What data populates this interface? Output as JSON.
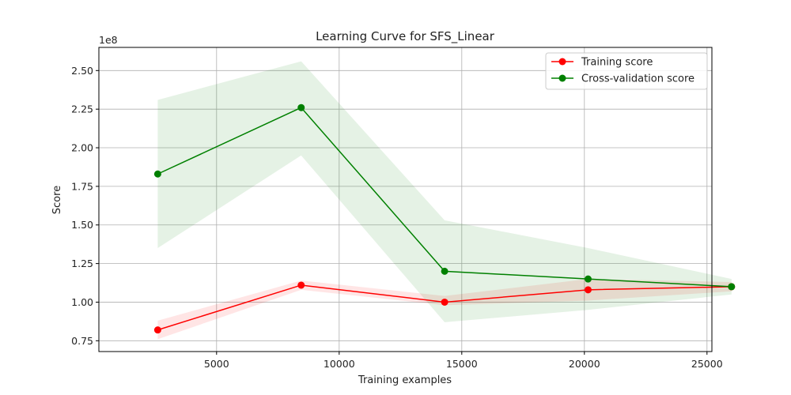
{
  "chart_data": {
    "type": "line",
    "title": "Learning Curve for SFS_Linear",
    "xlabel": "Training examples",
    "ylabel": "Score",
    "y_scale_label": "1e8",
    "xlim": [
      200,
      25200
    ],
    "ylim": [
      68000000,
      265000000
    ],
    "x_ticks": [
      5000,
      10000,
      15000,
      20000,
      25000
    ],
    "y_ticks": [
      75000000,
      100000000,
      125000000,
      150000000,
      175000000,
      200000000,
      225000000,
      250000000
    ],
    "x_tick_labels": [
      "5000",
      "10000",
      "15000",
      "20000",
      "25000"
    ],
    "y_tick_labels": [
      "0.75",
      "1.00",
      "1.25",
      "1.50",
      "1.75",
      "2.00",
      "2.25",
      "2.50"
    ],
    "grid": true,
    "legend_position": "top-right",
    "x": [
      2600,
      8450,
      14300,
      20150,
      26000
    ],
    "series": [
      {
        "name": "Training score",
        "color": "#ff0000",
        "values": [
          82000000,
          111000000,
          100000000,
          108000000,
          110000000
        ],
        "band_lower": [
          76000000,
          108000000,
          98000000,
          101000000,
          107000000
        ],
        "band_upper": [
          88000000,
          114000000,
          104000000,
          115000000,
          113000000
        ]
      },
      {
        "name": "Cross-validation score",
        "color": "#008000",
        "values": [
          183000000,
          226000000,
          120000000,
          115000000,
          110000000
        ],
        "band_lower": [
          135000000,
          195000000,
          87000000,
          95000000,
          105000000
        ],
        "band_upper": [
          231000000,
          256000000,
          153000000,
          135000000,
          115000000
        ]
      }
    ]
  }
}
